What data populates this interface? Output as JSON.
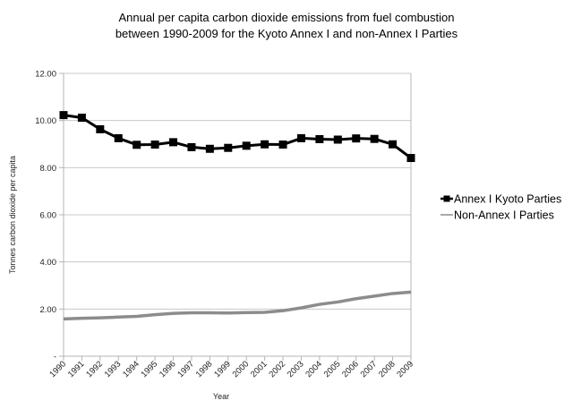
{
  "chart_data": {
    "type": "line",
    "title": [
      "Annual per capita carbon dioxide emissions from fuel combustion",
      "between 1990-2009 for the Kyoto Annex I and non-Annex I Parties"
    ],
    "xlabel": "Year",
    "ylabel": "Tonnes carbon dioxide per capita",
    "x": [
      "1990",
      "1991",
      "1992",
      "1993",
      "1994",
      "1995",
      "1996",
      "1997",
      "1998",
      "1999",
      "2000",
      "2001",
      "2002",
      "2003",
      "2004",
      "2005",
      "2006",
      "2007",
      "2008",
      "2009"
    ],
    "ylim": [
      0,
      12
    ],
    "yticks": [
      0,
      2,
      4,
      6,
      8,
      10,
      12
    ],
    "ytick_labels": [
      "-",
      "2.00",
      "4.00",
      "6.00",
      "8.00",
      "10.00",
      "12.00"
    ],
    "grid": true,
    "legend_position": "right",
    "series": [
      {
        "name": "Annex I Kyoto Parties",
        "color": "#000000",
        "marker": "square",
        "values": [
          10.23,
          10.12,
          9.63,
          9.25,
          8.97,
          8.98,
          9.08,
          8.87,
          8.8,
          8.84,
          8.93,
          8.99,
          8.98,
          9.25,
          9.21,
          9.19,
          9.24,
          9.22,
          8.99,
          8.41
        ]
      },
      {
        "name": "Non-Annex I Parties",
        "color": "#8c8c8c",
        "marker": "none",
        "values": [
          1.58,
          1.61,
          1.63,
          1.66,
          1.69,
          1.76,
          1.82,
          1.84,
          1.84,
          1.83,
          1.85,
          1.86,
          1.93,
          2.05,
          2.2,
          2.3,
          2.44,
          2.55,
          2.66,
          2.72
        ]
      }
    ]
  }
}
